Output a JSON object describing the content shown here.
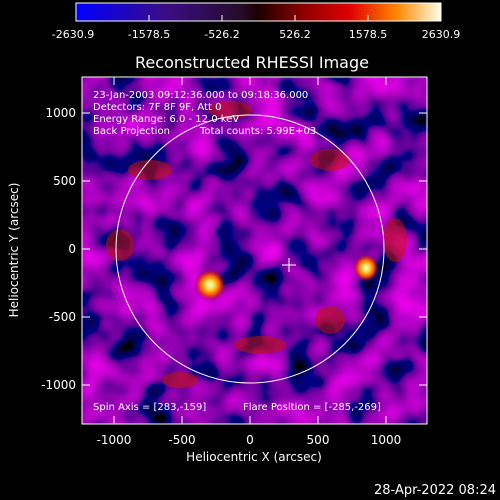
{
  "colorbar": {
    "ticks": [
      "-2630.9",
      "-1578.5",
      "-526.2",
      "526.2",
      "1578.5",
      "2630.9"
    ]
  },
  "plot": {
    "title": "Reconstructed RHESSI Image",
    "xlabel": "Heliocentric X (arcsec)",
    "ylabel": "Heliocentric Y (arcsec)",
    "x_ticks": [
      "-1000",
      "-500",
      "0",
      "500",
      "1000"
    ],
    "y_ticks": [
      "1000",
      "500",
      "0",
      "-500",
      "-1000"
    ]
  },
  "annotations": {
    "line1": "23-Jan-2003 09:12:36.000 to 09:18:36.000",
    "line2": "Detectors: 7F 8F 9F, Att 0",
    "line3": "Energy Range: 6.0 - 12.0 keV",
    "line4a": "Back Projection",
    "line4b": "Total counts: 5.99E+03",
    "spin_axis": "Spin Axis = [283,-159]",
    "flare_position": "Flare Position = [-285,-269]"
  },
  "footer": {
    "timestamp": "28-Apr-2022 08:24"
  }
}
